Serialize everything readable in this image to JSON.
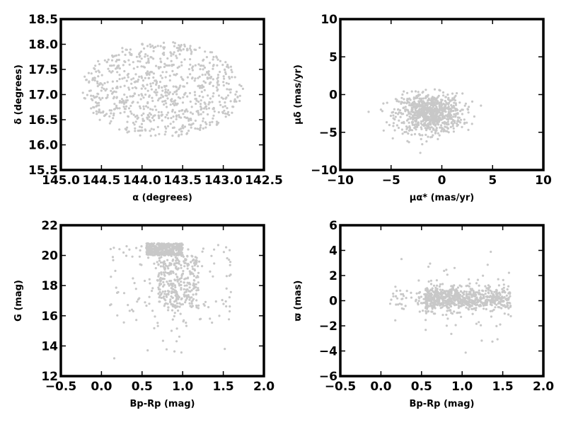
{
  "chart_data": [
    {
      "type": "scatter",
      "title": "",
      "xlabel": "α (degrees)",
      "ylabel": "δ (degrees)",
      "xlim": [
        145.0,
        142.5
      ],
      "ylim": [
        15.5,
        18.5
      ],
      "xticks": [
        145.0,
        144.5,
        144.0,
        143.5,
        143.0,
        142.5
      ],
      "yticks": [
        15.5,
        16.0,
        16.5,
        17.0,
        17.5,
        18.0,
        18.5
      ],
      "xtick_labels": [
        "145.0",
        "144.5",
        "144.0",
        "143.5",
        "143.0",
        "142.5"
      ],
      "ytick_labels": [
        "15.5",
        "16.0",
        "16.5",
        "17.0",
        "17.5",
        "18.0",
        "18.5"
      ],
      "point_color": "#c8c8c8",
      "grid": false,
      "distribution": {
        "shape": "ellipse",
        "center": [
          143.75,
          17.1
        ],
        "semi_axes": [
          0.95,
          0.95
        ],
        "count": 800
      }
    },
    {
      "type": "scatter",
      "title": "",
      "xlabel": "μα* (mas/yr)",
      "ylabel": "μδ (mas/yr)",
      "xlim": [
        -10,
        10
      ],
      "ylim": [
        -10,
        10
      ],
      "xticks": [
        -10,
        -5,
        0,
        5,
        10
      ],
      "yticks": [
        -10,
        -5,
        0,
        5,
        10
      ],
      "xtick_labels": [
        "−10",
        "−5",
        "0",
        "5",
        "10"
      ],
      "ytick_labels": [
        "−10",
        "−5",
        "0",
        "5",
        "10"
      ],
      "point_color": "#c8c8c8",
      "grid": false,
      "distribution": {
        "shape": "gaussian",
        "center": [
          -1.2,
          -2.5
        ],
        "spread": [
          1.6,
          1.3
        ],
        "count": 800
      }
    },
    {
      "type": "scatter",
      "title": "",
      "xlabel": "Bp-Rp (mag)",
      "ylabel": "G (mag)",
      "xlim": [
        -0.5,
        2.0
      ],
      "ylim": [
        12,
        22
      ],
      "y_inverted": false,
      "xticks": [
        -0.5,
        0.0,
        0.5,
        1.0,
        1.5,
        2.0
      ],
      "yticks": [
        12,
        14,
        16,
        18,
        20,
        22
      ],
      "xtick_labels": [
        "−0.5",
        "0.0",
        "0.5",
        "1.0",
        "1.5",
        "2.0"
      ],
      "ytick_labels": [
        "12",
        "14",
        "16",
        "18",
        "20",
        "22"
      ],
      "point_color": "#c8c8c8",
      "grid": false,
      "distribution": {
        "shape": "cmd",
        "color_range": [
          0.1,
          1.6
        ],
        "mag_range": [
          13,
          20.8
        ],
        "count": 800
      }
    },
    {
      "type": "scatter",
      "title": "",
      "xlabel": "Bp-Rp (mag)",
      "ylabel": "ϖ (mas)",
      "xlim": [
        -0.5,
        2.0
      ],
      "ylim": [
        -6,
        6
      ],
      "xticks": [
        -0.5,
        0.0,
        0.5,
        1.0,
        1.5,
        2.0
      ],
      "yticks": [
        -6,
        -4,
        -2,
        0,
        2,
        4,
        6
      ],
      "xtick_labels": [
        "−0.5",
        "0.0",
        "0.5",
        "1.0",
        "1.5",
        "2.0"
      ],
      "ytick_labels": [
        "−6",
        "−4",
        "−2",
        "0",
        "2",
        "4",
        "6"
      ],
      "point_color": "#c8c8c8",
      "grid": false,
      "distribution": {
        "shape": "band",
        "color_range": [
          0.1,
          1.6
        ],
        "center": 0.1,
        "spread": 0.45,
        "count": 800
      }
    }
  ]
}
